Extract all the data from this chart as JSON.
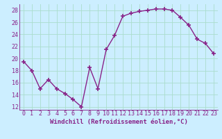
{
  "x": [
    0,
    1,
    2,
    3,
    4,
    5,
    6,
    7,
    8,
    9,
    10,
    11,
    12,
    13,
    14,
    15,
    16,
    17,
    18,
    19,
    20,
    21,
    22,
    23
  ],
  "y": [
    19.5,
    18.0,
    15.0,
    16.5,
    15.0,
    14.2,
    13.2,
    12.0,
    18.5,
    15.0,
    21.5,
    23.8,
    27.0,
    27.5,
    27.8,
    28.0,
    28.2,
    28.2,
    28.0,
    26.8,
    25.5,
    23.2,
    22.5,
    20.8
  ],
  "line_color": "#882288",
  "marker": "+",
  "markersize": 4,
  "linewidth": 1.0,
  "xlabel": "Windchill (Refroidissement éolien,°C)",
  "xlim": [
    -0.5,
    23.5
  ],
  "ylim": [
    11.5,
    29.0
  ],
  "yticks": [
    12,
    14,
    16,
    18,
    20,
    22,
    24,
    26,
    28
  ],
  "xticks": [
    0,
    1,
    2,
    3,
    4,
    5,
    6,
    7,
    8,
    9,
    10,
    11,
    12,
    13,
    14,
    15,
    16,
    17,
    18,
    19,
    20,
    21,
    22,
    23
  ],
  "bg_color": "#cceeff",
  "grid_color": "#aaddcc",
  "tick_label_color": "#882288",
  "xlabel_color": "#882288",
  "xlabel_fontsize": 6.5,
  "tick_fontsize": 6.0
}
